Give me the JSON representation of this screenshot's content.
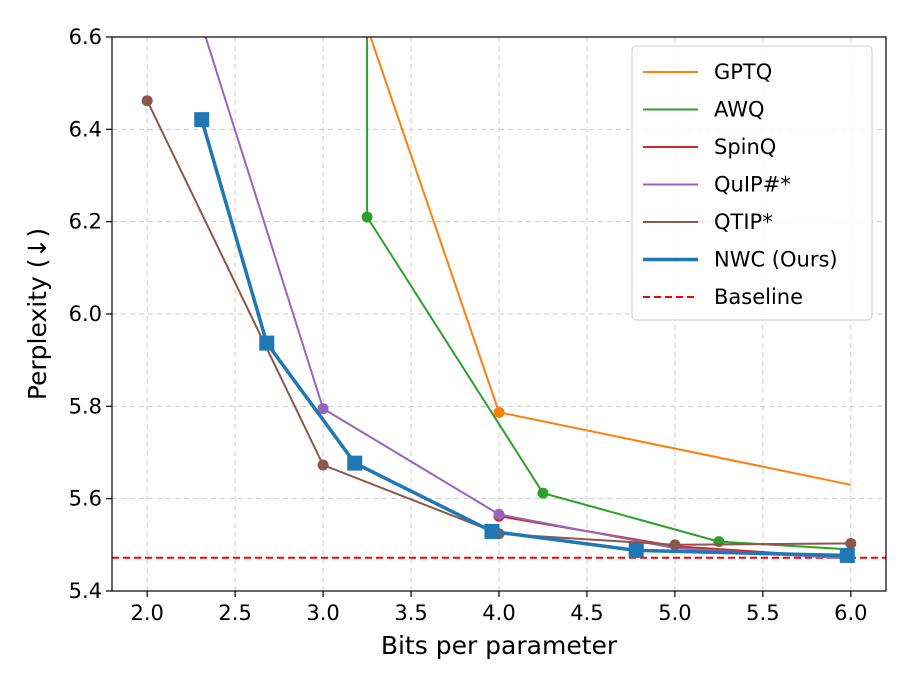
{
  "chart_data": {
    "type": "line",
    "xlabel": "Bits per parameter",
    "ylabel": "Perplexity (↓)",
    "xlim": [
      1.8,
      6.2
    ],
    "ylim": [
      5.4,
      6.6
    ],
    "xticks": [
      2.0,
      2.5,
      3.0,
      3.5,
      4.0,
      4.5,
      5.0,
      5.5,
      6.0
    ],
    "yticks": [
      5.4,
      5.6,
      5.8,
      6.0,
      6.2,
      6.4,
      6.6
    ],
    "xtick_labels": [
      "2.0",
      "2.5",
      "3.0",
      "3.5",
      "4.0",
      "4.5",
      "5.0",
      "5.5",
      "6.0"
    ],
    "ytick_labels": [
      "5.4",
      "5.6",
      "5.8",
      "6.0",
      "6.2",
      "6.4",
      "6.6"
    ],
    "grid": true,
    "legend_position": "top-right",
    "series": [
      {
        "name": "GPTQ",
        "color": "#ff7f0e",
        "marker": "circle",
        "width": 2,
        "points": [
          [
            3.0,
            6.9
          ],
          [
            4.0,
            5.787
          ],
          [
            6.0,
            5.63
          ]
        ],
        "markers": [
          1
        ]
      },
      {
        "name": "AWQ",
        "color": "#2ca02c",
        "marker": "circle",
        "width": 2,
        "points": [
          [
            3.25,
            6.9
          ],
          [
            3.25,
            6.21
          ],
          [
            4.25,
            5.612
          ],
          [
            5.25,
            5.507
          ],
          [
            6.0,
            5.49
          ]
        ],
        "markers": [
          1,
          2,
          3
        ]
      },
      {
        "name": "SpinQ",
        "color": "#d62728",
        "marker": "circle",
        "width": 2,
        "points": [
          [
            4.0,
            5.562
          ],
          [
            5.0,
            5.497
          ],
          [
            6.0,
            5.472
          ]
        ],
        "markers": [
          0
        ]
      },
      {
        "name": "QuIP#*",
        "color": "#9467bd",
        "marker": "circle",
        "width": 2,
        "points": [
          [
            2.0,
            7.0
          ],
          [
            3.0,
            5.795
          ],
          [
            4.0,
            5.566
          ],
          [
            5.0,
            5.493
          ],
          [
            6.0,
            5.47
          ]
        ],
        "markers": [
          1,
          2
        ]
      },
      {
        "name": "QTIP*",
        "color": "#8c564b",
        "marker": "circle",
        "width": 2,
        "points": [
          [
            2.0,
            6.462
          ],
          [
            3.0,
            5.673
          ],
          [
            4.0,
            5.524
          ],
          [
            5.0,
            5.5
          ],
          [
            6.0,
            5.503
          ]
        ],
        "markers": [
          0,
          1,
          2,
          3,
          4
        ]
      },
      {
        "name": "NWC (Ours)",
        "color": "#1f77b4",
        "marker": "square",
        "width": 3.5,
        "points": [
          [
            2.31,
            6.421
          ],
          [
            2.68,
            5.937
          ],
          [
            3.18,
            5.677
          ],
          [
            3.96,
            5.529
          ],
          [
            4.78,
            5.488
          ],
          [
            5.98,
            5.477
          ]
        ],
        "markers": [
          0,
          1,
          2,
          3,
          4,
          5
        ]
      }
    ],
    "baseline": {
      "name": "Baseline",
      "color": "#ff0000",
      "y": 5.472
    }
  }
}
